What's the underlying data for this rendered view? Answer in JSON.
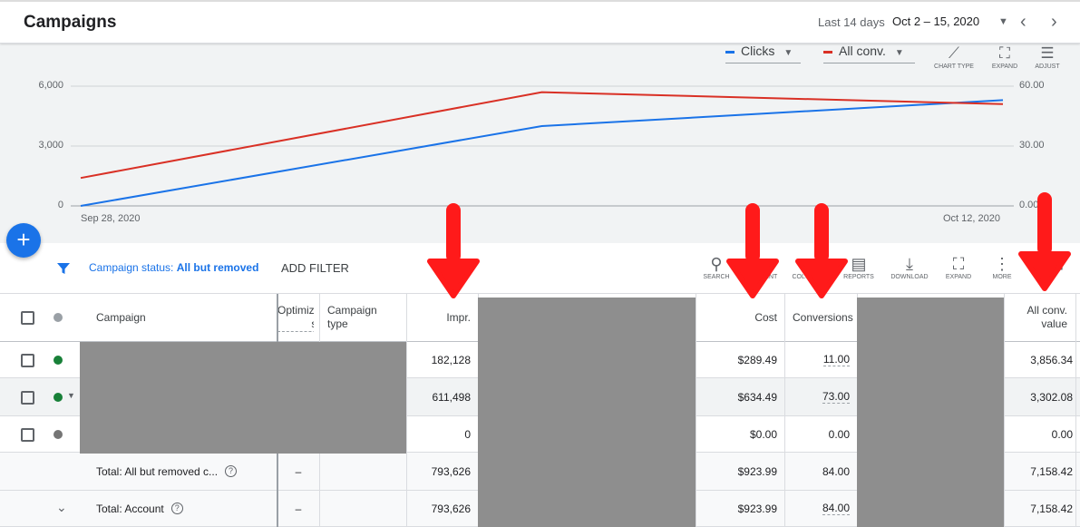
{
  "header": {
    "title": "Campaigns",
    "date_range_label": "Last 14 days",
    "date_range_value": "Oct 2 – 15, 2020"
  },
  "chart": {
    "metric1": "Clicks",
    "metric2": "All conv.",
    "tools": [
      "CHART TYPE",
      "EXPAND",
      "ADJUST"
    ]
  },
  "chart_data": {
    "type": "line",
    "x": [
      "Sep 28, 2020",
      "Oct 5, 2020",
      "Oct 12, 2020"
    ],
    "xtick_labels": [
      "Sep 28, 2020",
      "Oct 12, 2020"
    ],
    "left_ticks": [
      "6,000",
      "3,000",
      "0"
    ],
    "right_ticks": [
      "60.00",
      "30.00",
      "0.00"
    ],
    "ylim_left": [
      0,
      6000
    ],
    "ylim_right": [
      0,
      60
    ],
    "series": [
      {
        "name": "Clicks",
        "axis": "left",
        "color": "#1a73e8",
        "values": [
          0,
          4000,
          5300
        ]
      },
      {
        "name": "All conv.",
        "axis": "right",
        "color": "#d93025",
        "values": [
          14,
          57,
          51
        ]
      }
    ],
    "grid": true
  },
  "filterbar": {
    "status_label": "Campaign status:",
    "status_value": "All but removed",
    "add_filter": "ADD FILTER",
    "tools": [
      "SEARCH",
      "SEGMENT",
      "COLUMNS",
      "REPORTS",
      "DOWNLOAD",
      "EXPAND",
      "MORE",
      ""
    ]
  },
  "table": {
    "headers": {
      "campaign": "Campaign",
      "optimization": "Optimization score",
      "campaign_type": "Campaign type",
      "impr": "Impr.",
      "cost": "Cost",
      "conversions": "Conversions",
      "all_conv_value": "All conv. value"
    },
    "rows": [
      {
        "impr": "182,128",
        "cost": "$289.49",
        "conversions": "11.00",
        "all_conv_value": "3,856.34"
      },
      {
        "impr": "611,498",
        "cost": "$634.49",
        "conversions": "73.00",
        "all_conv_value": "3,302.08"
      },
      {
        "impr": "0",
        "cost": "$0.00",
        "conversions": "0.00",
        "all_conv_value": "0.00"
      }
    ],
    "totals": [
      {
        "label": "Total: All but removed c...",
        "optimization": "–",
        "impr": "793,626",
        "cost": "$923.99",
        "conversions": "84.00",
        "all_conv_value": "7,158.42"
      },
      {
        "label": "Total: Account",
        "optimization": "–",
        "impr": "793,626",
        "cost": "$923.99",
        "conversions": "84.00",
        "all_conv_value": "7,158.42"
      }
    ]
  },
  "colors": {
    "accent": "#1a73e8",
    "enabled_status": "#188038",
    "annotation_arrow": "#ff1a1a",
    "redaction": "#8e8e8e"
  }
}
